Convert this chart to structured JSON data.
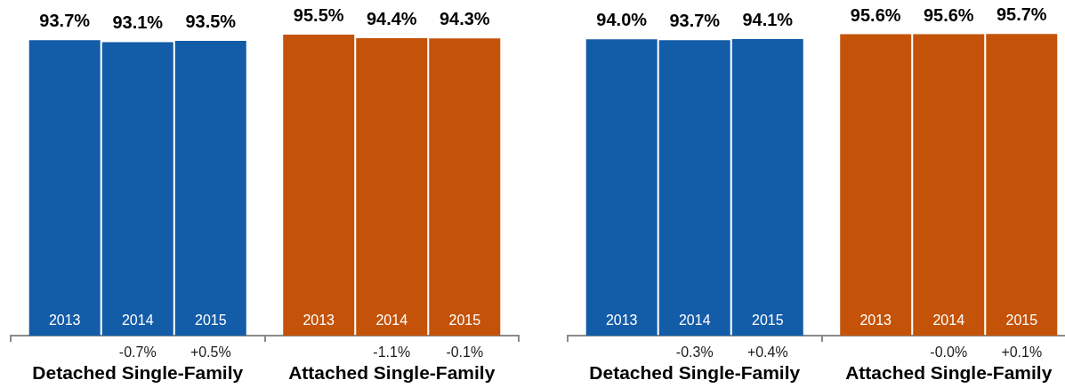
{
  "chart_data": [
    {
      "type": "bar",
      "categories": [
        "Detached Single-Family",
        "Attached Single-Family"
      ],
      "series": [
        {
          "name": "2013",
          "colors": [
            "#135ca8",
            "#c45309"
          ],
          "values": [
            93.7,
            95.5
          ],
          "value_labels": [
            "93.7%",
            "95.5%"
          ]
        },
        {
          "name": "2014",
          "colors": [
            "#135ca8",
            "#c45309"
          ],
          "values": [
            93.1,
            94.4
          ],
          "value_labels": [
            "93.1%",
            "94.4%"
          ]
        },
        {
          "name": "2015",
          "colors": [
            "#135ca8",
            "#c45309"
          ],
          "values": [
            93.5,
            94.3
          ],
          "value_labels": [
            "93.5%",
            "94.3%"
          ]
        }
      ],
      "annotations": [
        "-0.7%",
        "+0.5%",
        "-1.1%",
        "-0.1%"
      ],
      "tick_labels": "x",
      "grid": false,
      "legend": false
    },
    {
      "type": "bar",
      "categories": [
        "Detached Single-Family",
        "Attached Single-Family"
      ],
      "series": [
        {
          "name": "2013",
          "colors": [
            "#135ca8",
            "#c45309"
          ],
          "values": [
            94.0,
            95.6
          ],
          "value_labels": [
            "94.0%",
            "95.6%"
          ]
        },
        {
          "name": "2014",
          "colors": [
            "#135ca8",
            "#c45309"
          ],
          "values": [
            93.7,
            95.6
          ],
          "value_labels": [
            "93.7%",
            "95.6%"
          ]
        },
        {
          "name": "2015",
          "colors": [
            "#135ca8",
            "#c45309"
          ],
          "values": [
            94.1,
            95.7
          ],
          "value_labels": [
            "94.1%",
            "95.7%"
          ]
        }
      ],
      "annotations": [
        "-0.3%",
        "+0.4%",
        "-0.0%",
        "+0.1%"
      ],
      "tick_labels": "x",
      "grid": false,
      "legend": false
    }
  ]
}
